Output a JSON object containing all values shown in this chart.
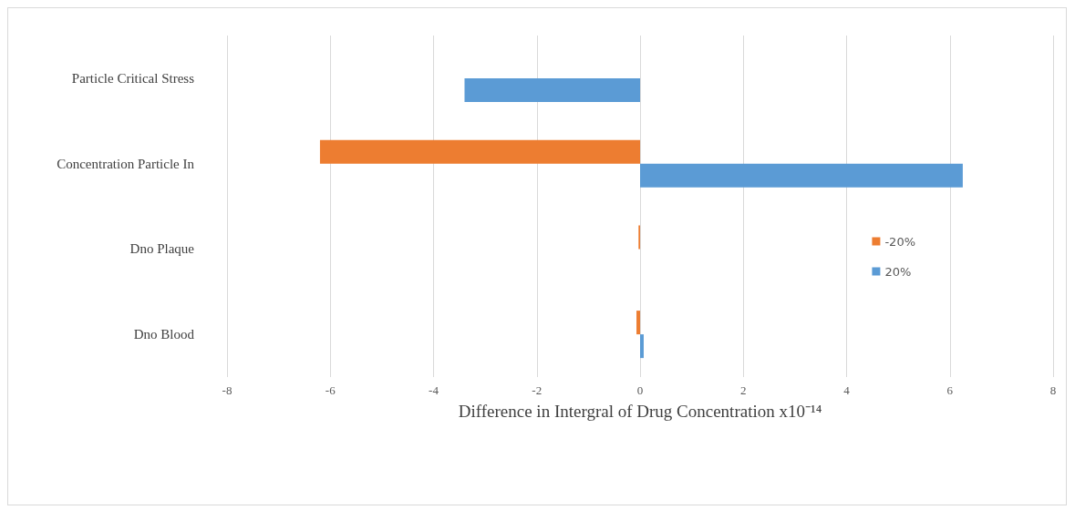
{
  "chart_data": {
    "type": "bar",
    "orientation": "horizontal",
    "xlabel": "Difference in Intergral of Drug Concentration x10⁻¹⁴",
    "categories": [
      "Particle Critical Stress",
      "Concentration Particle In",
      "Dno Plaque",
      "Dno Blood"
    ],
    "series": [
      {
        "name": "-20%",
        "color": "#ed7d31",
        "values": [
          0,
          -6.2,
          -0.03,
          -0.07
        ]
      },
      {
        "name": "20%",
        "color": "#5b9bd5",
        "values": [
          -3.4,
          6.25,
          0,
          0.07
        ]
      }
    ],
    "xlim": [
      -8,
      8
    ],
    "xticks": [
      -8,
      -6,
      -4,
      -2,
      0,
      2,
      4,
      6,
      8
    ],
    "grid": "x",
    "legend": "right"
  }
}
